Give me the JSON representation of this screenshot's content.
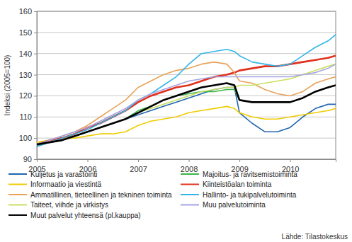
{
  "chart_data": {
    "type": "line",
    "y_label": "Indeksi (2005=100)",
    "source": "Lähde: Tilastokeskus",
    "x": [
      2005,
      2005.25,
      2005.5,
      2005.75,
      2006,
      2006.25,
      2006.5,
      2006.75,
      2007,
      2007.25,
      2007.5,
      2007.75,
      2008,
      2008.25,
      2008.5,
      2008.75,
      2008.9,
      2009,
      2009.25,
      2009.5,
      2009.75,
      2010,
      2010.25,
      2010.5,
      2010.75,
      2010.9
    ],
    "xlim": [
      2005,
      2010.9
    ],
    "xticks": [
      2005,
      2006,
      2007,
      2008,
      2009,
      2010
    ],
    "ylim": [
      90,
      160
    ],
    "yticks": [
      90,
      100,
      110,
      120,
      130,
      140,
      150,
      160
    ],
    "grid": true,
    "legend": "bottom",
    "series": [
      {
        "name": "Kuljetus ja varastointi",
        "color": "#2166b0",
        "values": [
          96,
          98,
          99,
          101,
          103,
          105,
          107,
          109,
          111,
          113,
          115,
          117,
          119,
          121,
          123,
          124,
          124,
          112,
          107,
          103,
          103,
          105,
          110,
          114,
          116,
          116
        ]
      },
      {
        "name": "Majoitus- ja ravitsemistoiminta",
        "color": "#3cb44b",
        "values": [
          97,
          99,
          100,
          101,
          103,
          105,
          107,
          109,
          113,
          115,
          118,
          120,
          121,
          122,
          122,
          123,
          123,
          118,
          117,
          117,
          117,
          117,
          119,
          122,
          124,
          125
        ]
      },
      {
        "name": "Informaatio ja viestintä",
        "color": "#f0cc00",
        "values": [
          98,
          99,
          100,
          100,
          101,
          102,
          102,
          103,
          106,
          108,
          109,
          110,
          112,
          113,
          114,
          115,
          114,
          112,
          110,
          109,
          109,
          110,
          111,
          112,
          113,
          114
        ]
      },
      {
        "name": "Kiinteistöalan toiminta",
        "color": "#e0301e",
        "values": [
          97,
          99,
          100,
          102,
          105,
          107,
          110,
          113,
          117,
          120,
          122,
          124,
          125,
          127,
          129,
          130,
          131,
          132,
          133,
          134,
          134,
          135,
          136,
          137,
          138,
          139
        ]
      },
      {
        "name": "Ammatillinen, tieteellinen ja tekninen toiminta",
        "color": "#e8a35a",
        "values": [
          97,
          99,
          101,
          103,
          106,
          110,
          114,
          118,
          124,
          127,
          130,
          132,
          133,
          135,
          136,
          135,
          131,
          127,
          126,
          123,
          121,
          120,
          122,
          126,
          128,
          129
        ]
      },
      {
        "name": "Hallinto- ja tukipalvelutoiminta",
        "color": "#33b4e6",
        "values": [
          96,
          98,
          100,
          102,
          104,
          107,
          110,
          113,
          118,
          121,
          125,
          129,
          135,
          140,
          141,
          142,
          141,
          139,
          136,
          135,
          134,
          135,
          139,
          143,
          146,
          149
        ]
      },
      {
        "name": "Taiteet, viihde ja virkistys",
        "color": "#c8e063",
        "values": [
          97,
          98,
          99,
          101,
          103,
          105,
          107,
          109,
          112,
          114,
          116,
          118,
          120,
          122,
          123,
          124,
          124,
          125,
          125,
          126,
          127,
          128,
          130,
          132,
          134,
          135
        ]
      },
      {
        "name": "Muu palvelutoiminta",
        "color": "#a4a4e2",
        "values": [
          97,
          99,
          101,
          103,
          105,
          108,
          111,
          114,
          118,
          121,
          123,
          125,
          127,
          128,
          129,
          129,
          129,
          129,
          129,
          129,
          129,
          129,
          130,
          131,
          133,
          135
        ]
      },
      {
        "name": "Muut palvelut yhteensä (pl.kauppa)",
        "color": "#000000",
        "values": [
          97,
          98,
          99,
          101,
          103,
          105,
          107,
          109,
          112,
          115,
          118,
          120,
          122,
          124,
          125,
          126,
          125,
          118,
          117,
          117,
          117,
          117,
          119,
          122,
          124,
          125
        ]
      }
    ]
  }
}
